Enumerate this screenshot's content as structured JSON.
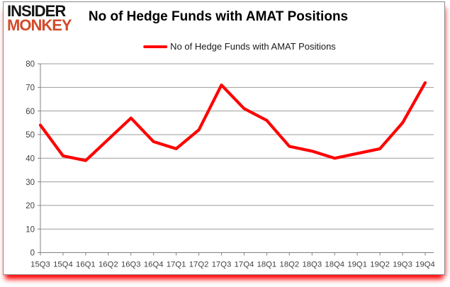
{
  "logo": {
    "line1": "INSIDER",
    "line2": "MONKEY"
  },
  "header": {
    "title": "No of Hedge Funds with AMAT Positions"
  },
  "legend": {
    "label": "No of Hedge Funds with AMAT Positions"
  },
  "chart_data": {
    "type": "line",
    "title": "No of Hedge Funds with AMAT Positions",
    "categories": [
      "15Q3",
      "15Q4",
      "16Q1",
      "16Q2",
      "16Q3",
      "16Q4",
      "17Q1",
      "17Q2",
      "17Q3",
      "17Q4",
      "18Q1",
      "18Q2",
      "18Q3",
      "18Q4",
      "19Q1",
      "19Q2",
      "19Q3",
      "19Q4"
    ],
    "series": [
      {
        "name": "No of Hedge Funds with AMAT Positions",
        "color": "#ff0000",
        "values": [
          54,
          41,
          39,
          48,
          57,
          47,
          44,
          52,
          71,
          61,
          56,
          45,
          43,
          40,
          42,
          44,
          55,
          72
        ]
      }
    ],
    "xlabel": "",
    "ylabel": "",
    "ylim": [
      0,
      80
    ],
    "ytick_step": 10,
    "grid": true,
    "legend_position": "top-center"
  },
  "colors": {
    "line": "#ff0000",
    "grid": "#9b9b9b",
    "axis": "#808080",
    "tick_text": "#3f3f3f",
    "logo_red": "#d24a2b",
    "frame_glow": "#ff0000"
  }
}
